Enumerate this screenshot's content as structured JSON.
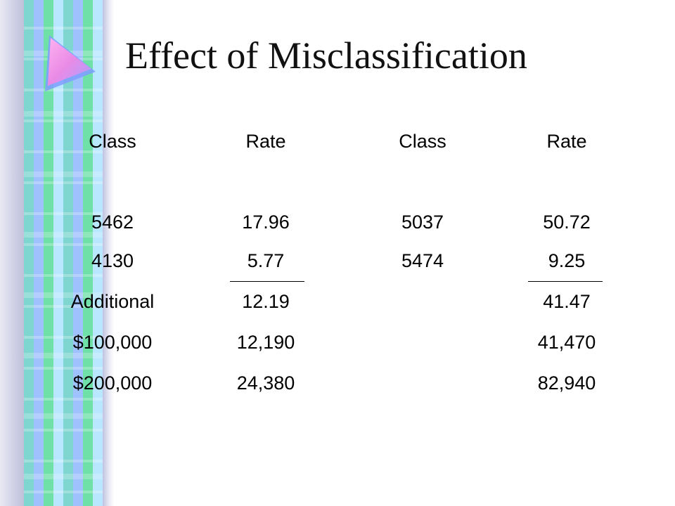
{
  "slide": {
    "title": "Effect of Misclassification"
  },
  "table": {
    "headers": [
      "Class",
      "Rate",
      "Class",
      "Rate"
    ],
    "rows": [
      [
        "5462",
        "17.96",
        "5037",
        "50.72"
      ],
      [
        "4130",
        "5.77",
        "5474",
        "9.25"
      ],
      [
        "Additional",
        "12.19",
        "",
        "41.47"
      ],
      [
        "$100,000",
        "12,190",
        "",
        "41,470"
      ],
      [
        "$200,000",
        "24,380",
        "",
        "82,940"
      ]
    ]
  },
  "colors": {
    "strip_teal": "#7fd6d0",
    "strip_blue": "#9fc2ff",
    "arrow_pink": "#e98be6",
    "arrow_blue": "#7f9cff"
  },
  "icons": [
    "play-triangle-icon"
  ]
}
